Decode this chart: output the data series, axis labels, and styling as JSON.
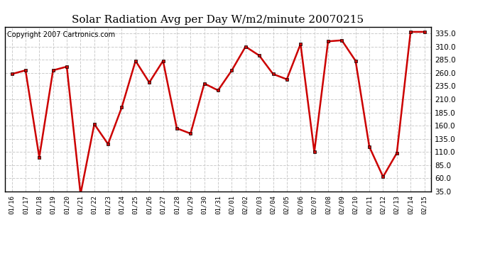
{
  "title": "Solar Radiation Avg per Day W/m2/minute 20070215",
  "copyright": "Copyright 2007 Cartronics.com",
  "dates": [
    "01/16",
    "01/17",
    "01/18",
    "01/19",
    "01/20",
    "01/21",
    "01/22",
    "01/23",
    "01/24",
    "01/25",
    "01/26",
    "01/27",
    "01/28",
    "01/29",
    "01/30",
    "01/31",
    "02/01",
    "02/02",
    "02/03",
    "02/04",
    "02/05",
    "02/06",
    "02/07",
    "02/08",
    "02/09",
    "02/10",
    "02/11",
    "02/12",
    "02/13",
    "02/14",
    "02/15"
  ],
  "values": [
    258,
    265,
    100,
    265,
    272,
    30,
    163,
    125,
    195,
    283,
    242,
    283,
    155,
    145,
    240,
    227,
    265,
    310,
    293,
    258,
    248,
    315,
    110,
    320,
    322,
    283,
    120,
    63,
    108,
    338,
    338
  ],
  "line_color": "#cc0000",
  "marker_color": "#cc0000",
  "bg_color": "#ffffff",
  "grid_color": "#cccccc",
  "ylim": [
    35.0,
    348.0
  ],
  "yticks": [
    35.0,
    60.0,
    85.0,
    110.0,
    135.0,
    160.0,
    185.0,
    210.0,
    235.0,
    260.0,
    285.0,
    310.0,
    335.0
  ],
  "title_fontsize": 11,
  "copyright_fontsize": 7
}
